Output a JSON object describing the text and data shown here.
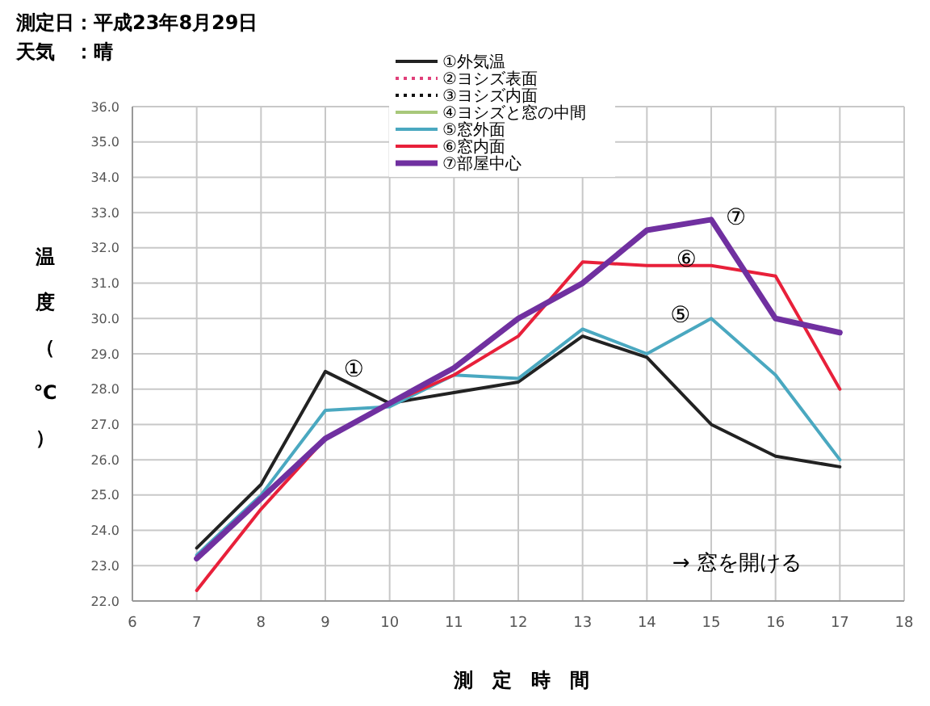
{
  "chart_data": {
    "type": "line",
    "title": "測定日：平成23年8月29日",
    "subtitle": "天気　：晴",
    "xlabel": "測　定　時　間",
    "ylabel": "温度（℃）",
    "x": [
      7,
      8,
      9,
      10,
      11,
      12,
      13,
      14,
      15,
      16,
      17
    ],
    "series": [
      {
        "name": "①外気温",
        "color": "#222222",
        "line_style": "solid",
        "values": [
          23.5,
          25.3,
          28.5,
          27.6,
          27.9,
          28.2,
          29.5,
          28.9,
          27.0,
          26.1,
          25.8
        ]
      },
      {
        "name": "②ヨシズ表面",
        "color": "#e0407a",
        "line_style": "dotted",
        "values": [
          null,
          null,
          null,
          null,
          null,
          null,
          null,
          null,
          null,
          null,
          null
        ]
      },
      {
        "name": "③ヨシズ内面",
        "color": "#111111",
        "line_style": "dotted",
        "values": [
          null,
          null,
          null,
          null,
          null,
          null,
          null,
          null,
          null,
          null,
          null
        ]
      },
      {
        "name": "④ヨシズと窓の中間",
        "color": "#a8c87a",
        "line_style": "solid",
        "values": [
          null,
          null,
          null,
          null,
          null,
          null,
          null,
          null,
          null,
          null,
          null
        ]
      },
      {
        "name": "⑤窓外面",
        "color": "#4aa8c0",
        "line_style": "solid",
        "values": [
          23.3,
          25.0,
          27.4,
          27.5,
          28.4,
          28.3,
          29.7,
          29.0,
          30.0,
          28.4,
          26.0
        ]
      },
      {
        "name": "⑥窓内面",
        "color": "#e8203a",
        "line_style": "solid",
        "values": [
          22.3,
          24.6,
          26.6,
          27.6,
          28.4,
          29.5,
          31.6,
          31.5,
          31.5,
          31.2,
          28.0
        ]
      },
      {
        "name": "⑦部屋中心",
        "color": "#7030a0",
        "line_style": "solid",
        "values": [
          23.2,
          24.9,
          26.6,
          27.6,
          28.6,
          30.0,
          31.0,
          32.5,
          32.8,
          30.0,
          29.6
        ]
      }
    ],
    "xlim": [
      6,
      18
    ],
    "xticks": [
      6,
      7,
      8,
      9,
      10,
      11,
      12,
      13,
      14,
      15,
      16,
      17,
      18
    ],
    "ylim": [
      22,
      36
    ],
    "yticks": [
      {
        "value": 22,
        "label": "22.0"
      },
      {
        "value": 23,
        "label": "23.0"
      },
      {
        "value": 24,
        "label": "24.0"
      },
      {
        "value": 25,
        "label": "25.0"
      },
      {
        "value": 26,
        "label": "26.0"
      },
      {
        "value": 27,
        "label": "27.0"
      },
      {
        "value": 28,
        "label": "28.0"
      },
      {
        "value": 29,
        "label": "29.0"
      },
      {
        "value": 30,
        "label": "30.0"
      },
      {
        "value": 31,
        "label": "31.0"
      },
      {
        "value": 32,
        "label": "32.0"
      },
      {
        "value": 33,
        "label": "33.0"
      },
      {
        "value": 34,
        "label": "34.0"
      },
      {
        "value": 35,
        "label": "35.0"
      },
      {
        "value": 36,
        "label": "36.0"
      }
    ],
    "grid": true,
    "legend": "top",
    "marker": "none",
    "annotations": [
      "①",
      "⑥",
      "⑤",
      "⑦",
      "→ 窓を開ける"
    ]
  }
}
